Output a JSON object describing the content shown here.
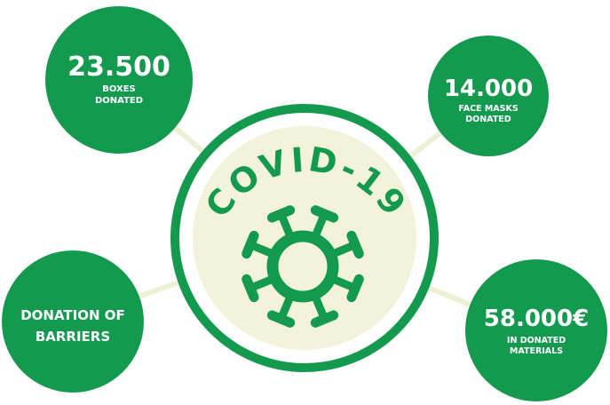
{
  "center": {
    "title": "COVID-19"
  },
  "nodes": [
    {
      "value": "23.500",
      "lines": [
        "BOXES",
        "DONATED"
      ]
    },
    {
      "value": "14.000",
      "lines": [
        "FACE MASKS",
        "DONATED"
      ]
    },
    {
      "lines": [
        "DONATION OF",
        "BARRIERS"
      ]
    },
    {
      "value": "58.000€",
      "lines": [
        "IN DONATED",
        "MATERIALS"
      ]
    }
  ]
}
